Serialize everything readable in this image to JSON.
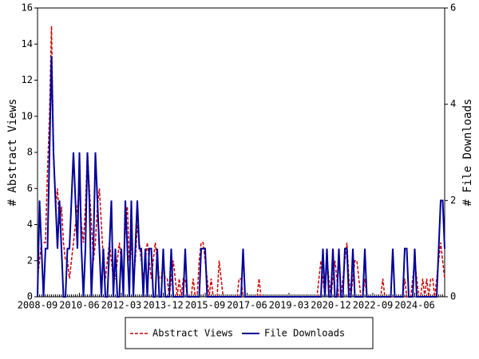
{
  "chart_data": {
    "type": "line",
    "y_label": "# Abstract Views",
    "y2_label": "# File Downloads",
    "categories": [
      "2008-09",
      null,
      null,
      null,
      null,
      null,
      null,
      null,
      null,
      null,
      null,
      null,
      null,
      null,
      null,
      null,
      null,
      null,
      null,
      null,
      null,
      "2010-06",
      null,
      null,
      null,
      null,
      null,
      null,
      null,
      null,
      null,
      null,
      null,
      null,
      null,
      null,
      null,
      null,
      null,
      null,
      null,
      null,
      "2012-03",
      null,
      null,
      null,
      null,
      null,
      null,
      null,
      null,
      null,
      null,
      null,
      null,
      null,
      null,
      null,
      null,
      null,
      null,
      null,
      null,
      "2013-12",
      null,
      null,
      null,
      null,
      null,
      null,
      null,
      null,
      null,
      null,
      null,
      null,
      null,
      null,
      null,
      null,
      null,
      null,
      null,
      null,
      "2015-09",
      null,
      null,
      null,
      null,
      null,
      null,
      null,
      null,
      null,
      null,
      null,
      null,
      null,
      null,
      null,
      null,
      null,
      null,
      null,
      null,
      "2017-06",
      null,
      null,
      null,
      null,
      null,
      null,
      null,
      null,
      null,
      null,
      null,
      null,
      null,
      null,
      null,
      null,
      null,
      null,
      null,
      null,
      "2019-03",
      null,
      null,
      null,
      null,
      null,
      null,
      null,
      null,
      null,
      null,
      null,
      null,
      null,
      null,
      null,
      null,
      null,
      null,
      null,
      null,
      "2020-12",
      null,
      null,
      null,
      null,
      null,
      null,
      null,
      null,
      null,
      null,
      null,
      null,
      null,
      null,
      null,
      null,
      null,
      null,
      null,
      null,
      "2022-09",
      null,
      null,
      null,
      null,
      null,
      null,
      null,
      null,
      null,
      null,
      null,
      null,
      null,
      null,
      null,
      null,
      null,
      null,
      null,
      null,
      "2024-06",
      null,
      null,
      null,
      null,
      null,
      null,
      null,
      null,
      null,
      null,
      null,
      null,
      null,
      null,
      null
    ],
    "series": [
      {
        "name": "Abstract Views",
        "color": "#cc0000",
        "dashed": true,
        "values": [
          1,
          2,
          3,
          3,
          3,
          7,
          10,
          15,
          8,
          5,
          6,
          4,
          5,
          3,
          2,
          2,
          1,
          2,
          3,
          4,
          5,
          6,
          4,
          3,
          5,
          8,
          6,
          4,
          2,
          3,
          5,
          6,
          4,
          2,
          1,
          2,
          3,
          2,
          1,
          1,
          2,
          3,
          2,
          1,
          4,
          5,
          2,
          3,
          1,
          2,
          4,
          3,
          2,
          1,
          2,
          3,
          2,
          1,
          2,
          3,
          2,
          1,
          1,
          2,
          1,
          1,
          0,
          1,
          2,
          1,
          0,
          1,
          0,
          1,
          1,
          0,
          0,
          0,
          1,
          0,
          0,
          2,
          3,
          3,
          2,
          1,
          0,
          1,
          0,
          0,
          0,
          2,
          1,
          0,
          0,
          0,
          0,
          0,
          0,
          0,
          0,
          1,
          1,
          0,
          0,
          0,
          0,
          0,
          0,
          0,
          0,
          1,
          0,
          0,
          0,
          0,
          0,
          0,
          0,
          0,
          0,
          0,
          0,
          0,
          0,
          0,
          0,
          0,
          0,
          0,
          0,
          0,
          0,
          0,
          0,
          0,
          0,
          0,
          0,
          0,
          0,
          1,
          2,
          1,
          0,
          2,
          1,
          0,
          1,
          2,
          1,
          0,
          0,
          1,
          2,
          3,
          1,
          0,
          1,
          2,
          2,
          1,
          0,
          0,
          1,
          0,
          0,
          0,
          0,
          0,
          0,
          0,
          0,
          1,
          0,
          0,
          0,
          0,
          0,
          0,
          0,
          0,
          0,
          0,
          1,
          0,
          0,
          0,
          1,
          2,
          1,
          0,
          0,
          1,
          0,
          1,
          0,
          1,
          1,
          0,
          1,
          2,
          3,
          2,
          1
        ]
      },
      {
        "name": "File Downloads",
        "color": "#000099",
        "axis": "y2",
        "values": [
          0,
          2,
          1,
          0,
          1,
          1,
          3,
          5,
          3,
          2,
          1,
          2,
          1,
          0,
          0,
          1,
          1,
          2,
          3,
          2,
          1,
          3,
          1,
          0,
          1,
          3,
          2,
          0,
          1,
          3,
          2,
          1,
          0,
          1,
          0,
          0,
          1,
          2,
          0,
          1,
          0,
          0,
          1,
          0,
          2,
          1,
          0,
          2,
          0,
          1,
          2,
          1,
          1,
          0,
          1,
          0,
          1,
          1,
          0,
          0,
          1,
          0,
          0,
          1,
          0,
          0,
          0,
          1,
          0,
          0,
          0,
          0,
          0,
          0,
          1,
          0,
          0,
          0,
          0,
          0,
          0,
          0,
          1,
          1,
          1,
          0,
          0,
          0,
          0,
          0,
          0,
          0,
          0,
          0,
          0,
          0,
          0,
          0,
          0,
          0,
          0,
          0,
          0,
          1,
          0,
          0,
          0,
          0,
          0,
          0,
          0,
          0,
          0,
          0,
          0,
          0,
          0,
          0,
          0,
          0,
          0,
          0,
          0,
          0,
          0,
          0,
          0,
          0,
          0,
          0,
          0,
          0,
          0,
          0,
          0,
          0,
          0,
          0,
          0,
          0,
          0,
          0,
          0,
          1,
          0,
          1,
          0,
          0,
          1,
          0,
          0,
          1,
          0,
          0,
          1,
          1,
          0,
          0,
          1,
          0,
          0,
          0,
          0,
          0,
          1,
          0,
          0,
          0,
          0,
          0,
          0,
          0,
          0,
          0,
          0,
          0,
          0,
          0,
          1,
          0,
          0,
          0,
          0,
          0,
          1,
          1,
          0,
          0,
          0,
          1,
          0,
          0,
          0,
          0,
          0,
          0,
          0,
          0,
          0,
          0,
          0,
          1,
          2,
          2,
          1
        ]
      }
    ],
    "ylim": [
      0,
      16
    ],
    "yticks": [
      0,
      2,
      4,
      6,
      8,
      10,
      12,
      14,
      16
    ],
    "y2lim": [
      0,
      6
    ],
    "y2ticks": [
      0,
      2,
      4,
      6
    ],
    "legend": "bottom"
  }
}
